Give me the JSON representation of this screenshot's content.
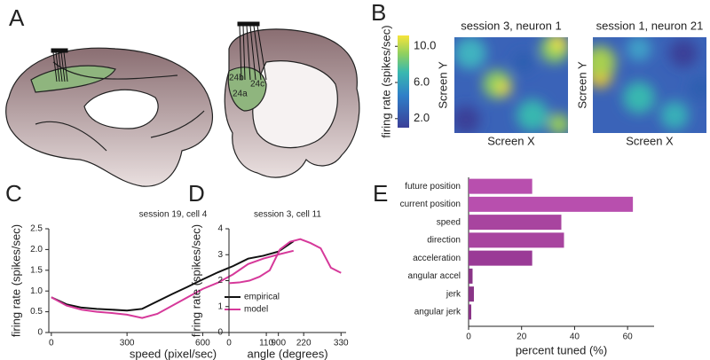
{
  "panel_labels": [
    "A",
    "B",
    "C",
    "D",
    "E"
  ],
  "panel_a": {
    "area_labels": [
      "24b",
      "24c",
      "24a"
    ]
  },
  "panel_b": {
    "colorbar": {
      "label": "firing rate (spikes/sec)",
      "lim": [
        1,
        11.2
      ],
      "ticks": [
        {
          "value": 2,
          "label": "2.0"
        },
        {
          "value": 6,
          "label": "6.0"
        },
        {
          "value": 10,
          "label": "10.0"
        }
      ]
    },
    "heatmaps": [
      {
        "title": "session 3, neuron 1",
        "xlabel": "Screen X",
        "ylabel": "Screen Y"
      },
      {
        "title": "session 1, neuron 21",
        "xlabel": "Screen X",
        "ylabel": "Screen Y"
      }
    ]
  },
  "chart_data": [
    {
      "type": "line",
      "title": "session 19, cell 4",
      "xlabel": "speed (pixel/sec)",
      "ylabel": "firing rate (spikes/sec)",
      "x": [
        0,
        60,
        120,
        180,
        240,
        300,
        360,
        420,
        480,
        540,
        600,
        660,
        720,
        780,
        840,
        900,
        960
      ],
      "series": [
        {
          "name": "empirical",
          "color": "#111111",
          "values": [
            0.85,
            0.68,
            0.6,
            0.57,
            0.55,
            0.53,
            0.57,
            0.75,
            0.93,
            1.1,
            1.28,
            1.45,
            1.6,
            1.78,
            1.85,
            1.95,
            2.2
          ]
        },
        {
          "name": "model",
          "color": "#d6399a",
          "values": [
            0.85,
            0.65,
            0.55,
            0.5,
            0.47,
            0.43,
            0.35,
            0.45,
            0.65,
            0.85,
            1.05,
            1.2,
            1.4,
            1.65,
            1.78,
            1.88,
            1.97
          ]
        }
      ],
      "xlim": [
        -10,
        975
      ],
      "ylim": [
        0,
        2.5
      ],
      "xticks": [
        0,
        300,
        600,
        900
      ],
      "yticks": [
        0,
        0.5,
        {
          "value": 1,
          "label": "1.0"
        },
        1.5,
        {
          "value": 2,
          "label": "2.0"
        },
        2.5
      ],
      "legend": "lower right"
    },
    {
      "type": "line",
      "title": "session 3, cell 11",
      "xlabel": "angle (degrees)",
      "ylabel": "firing rate (spikes/sec)",
      "x": [
        0,
        30,
        60,
        90,
        120,
        150,
        180,
        210,
        240,
        270,
        300,
        330
      ],
      "series": [
        {
          "color": "#d6399a",
          "values": [
            1.9,
            1.93,
            2.0,
            2.15,
            2.4,
            3.2,
            3.5,
            3.6,
            3.45,
            3.25,
            2.5,
            2.3
          ]
        }
      ],
      "xlim": [
        0,
        345
      ],
      "ylim": [
        0,
        4
      ],
      "xticks": [
        0,
        110,
        220,
        330
      ],
      "yticks": [
        0,
        1,
        2,
        3,
        4
      ]
    },
    {
      "type": "hbar",
      "xlabel": "percent tuned (%)",
      "categories": [
        "future position",
        "current position",
        "speed",
        "direction",
        "acceleration",
        "angular accel",
        "jerk",
        "angular jerk"
      ],
      "values": [
        24,
        62,
        35,
        36,
        24,
        1.5,
        2,
        1
      ],
      "colors": [
        "#b84fae",
        "#b84fae",
        "#a8449f",
        "#a8449f",
        "#9a3a96",
        "#8a3487",
        "#8a3487",
        "#8a3487"
      ],
      "xlim": [
        0,
        70
      ],
      "xticks": [
        0,
        20,
        40,
        60
      ]
    }
  ]
}
